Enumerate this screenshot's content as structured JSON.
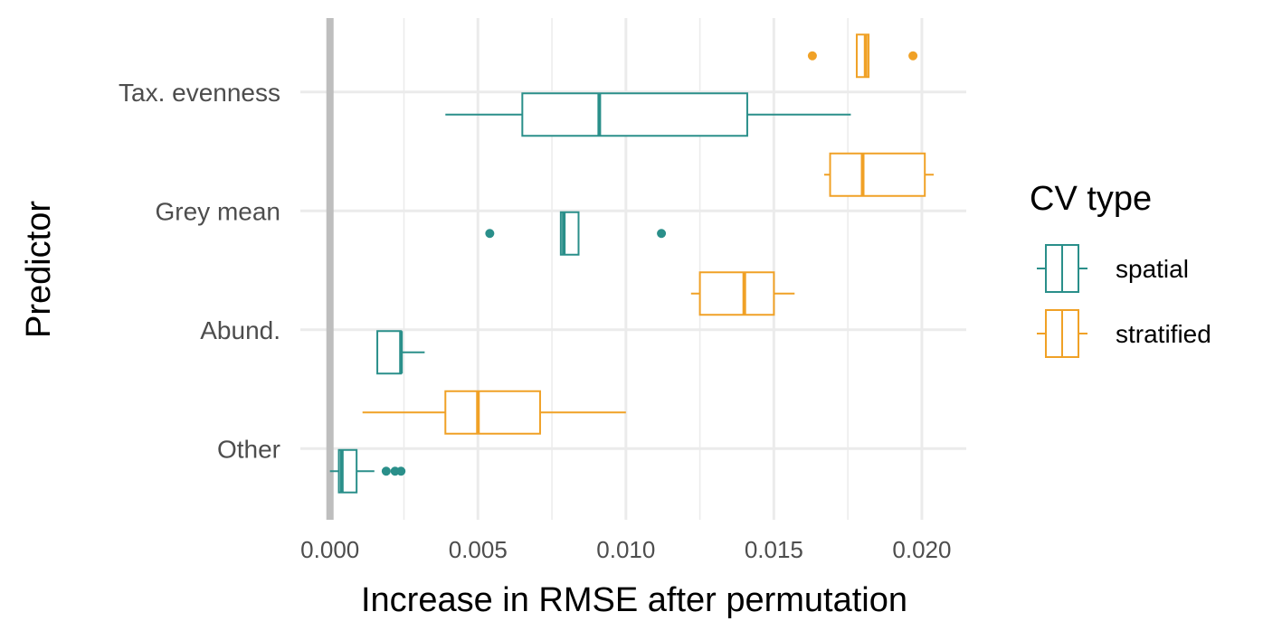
{
  "chart_data": {
    "type": "boxplot",
    "orientation": "horizontal",
    "xlabel": "Increase in RMSE after permutation",
    "ylabel": "Predictor",
    "xlim": [
      -0.001,
      0.0215
    ],
    "x_ticks": [
      0.0,
      0.005,
      0.01,
      0.015,
      0.02
    ],
    "x_tick_labels": [
      "0.000",
      "0.005",
      "0.010",
      "0.015",
      "0.020"
    ],
    "categories": [
      "Tax. evenness",
      "Grey mean",
      "Abund.",
      "Other"
    ],
    "reference_line_x": 0.0,
    "grid": true,
    "legend": {
      "title": "CV type",
      "position": "right",
      "entries": [
        "spatial",
        "stratified"
      ]
    },
    "colors": {
      "spatial": "#2a8f8a",
      "stratified": "#f0a126",
      "grid": "#ebebeb",
      "reference_line": "#bebebe"
    },
    "series": [
      {
        "name": "spatial",
        "boxes": [
          {
            "category": "Tax. evenness",
            "whisker_low": 0.0039,
            "q1": 0.0065,
            "median": 0.0091,
            "q3": 0.0141,
            "whisker_high": 0.0176,
            "outliers": []
          },
          {
            "category": "Grey mean",
            "whisker_low": 0.0078,
            "q1": 0.0078,
            "median": 0.0079,
            "q3": 0.0084,
            "whisker_high": 0.0084,
            "outliers": [
              0.0054,
              0.0112
            ]
          },
          {
            "category": "Abund.",
            "whisker_low": 0.0016,
            "q1": 0.0016,
            "median": 0.0024,
            "q3": 0.0024,
            "whisker_high": 0.0032,
            "outliers": []
          },
          {
            "category": "Other",
            "whisker_low": 0.0,
            "q1": 0.0003,
            "median": 0.0004,
            "q3": 0.0009,
            "whisker_high": 0.0015,
            "outliers": [
              0.0019,
              0.0022,
              0.0024
            ]
          }
        ]
      },
      {
        "name": "stratified",
        "boxes": [
          {
            "category": "Tax. evenness",
            "whisker_low": 0.0178,
            "q1": 0.0178,
            "median": 0.0181,
            "q3": 0.0182,
            "whisker_high": 0.0182,
            "outliers": [
              0.0163,
              0.0197
            ]
          },
          {
            "category": "Grey mean",
            "whisker_low": 0.0167,
            "q1": 0.0169,
            "median": 0.018,
            "q3": 0.0201,
            "whisker_high": 0.0204,
            "outliers": []
          },
          {
            "category": "Abund.",
            "whisker_low": 0.0122,
            "q1": 0.0125,
            "median": 0.014,
            "q3": 0.015,
            "whisker_high": 0.0157,
            "outliers": []
          },
          {
            "category": "Other",
            "whisker_low": 0.0011,
            "q1": 0.0039,
            "median": 0.005,
            "q3": 0.0071,
            "whisker_high": 0.01,
            "outliers": []
          }
        ]
      }
    ]
  }
}
